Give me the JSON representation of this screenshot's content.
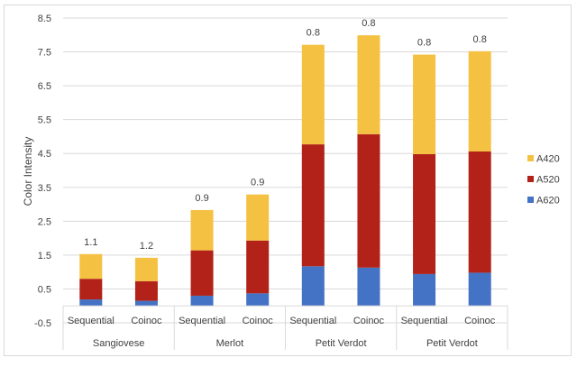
{
  "chart_data": {
    "type": "bar",
    "stacked": true,
    "title": "",
    "xlabel": "",
    "ylabel": "Color Intensity",
    "ylim": [
      -0.5,
      8.5
    ],
    "yticks": [
      "-0.5",
      "0.5",
      "1.5",
      "2.5",
      "3.5",
      "4.5",
      "5.5",
      "6.5",
      "7.5",
      "8.5"
    ],
    "grid": true,
    "legend_position": "right",
    "groups": [
      {
        "label": "Sangiovese",
        "categories": [
          "Sequential",
          "Coinoc"
        ]
      },
      {
        "label": "Merlot",
        "categories": [
          "Sequential",
          "Coinoc"
        ]
      },
      {
        "label": "Petit Verdot",
        "categories": [
          "Sequential",
          "Coinoc"
        ]
      },
      {
        "label": "Petit Verdot",
        "categories": [
          "Sequential",
          "Coinoc"
        ]
      }
    ],
    "series": [
      {
        "name": "A620",
        "color": "#4472C4",
        "values": [
          0.19,
          0.15,
          0.3,
          0.37,
          1.17,
          1.13,
          0.94,
          0.98
        ]
      },
      {
        "name": "A520",
        "color": "#B22218",
        "values": [
          0.61,
          0.58,
          1.34,
          1.56,
          3.6,
          3.94,
          3.54,
          3.58
        ]
      },
      {
        "name": "A420",
        "color": "#F5C142",
        "values": [
          0.73,
          0.69,
          1.19,
          1.36,
          2.94,
          2.92,
          2.94,
          2.96
        ]
      }
    ],
    "data_labels": [
      "1.1",
      "1.2",
      "0.9",
      "0.9",
      "0.8",
      "0.8",
      "0.8",
      "0.8"
    ]
  }
}
